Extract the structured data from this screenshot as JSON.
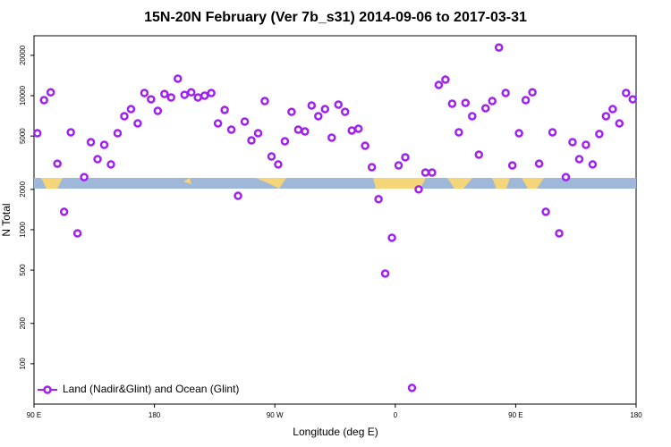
{
  "chart_data": {
    "type": "scatter",
    "title": "15N-20N February (Ver 7b_s31)   2014-09-06 to 2017-03-31",
    "x_label": "Longitude (deg E)",
    "y_label": "N Total",
    "log_y": true,
    "legend": "bottom-left",
    "xlim": [
      90,
      540
    ],
    "xticks": [
      {
        "value": 90,
        "label": "90 E"
      },
      180,
      {
        "value": 270,
        "label": "90 W"
      },
      {
        "value": 360,
        "label": "0"
      },
      {
        "value": 450,
        "label": "90 E"
      },
      {
        "value": 540,
        "label": "180"
      }
    ],
    "ylim": [
      50,
      28000
    ],
    "yticks": [
      100,
      200,
      500,
      1000,
      2000,
      5000,
      10000,
      20000
    ],
    "x": [
      92.5,
      97.5,
      102.5,
      107.5,
      112.5,
      117.5,
      122.5,
      127.5,
      132.5,
      137.5,
      142.5,
      147.5,
      152.5,
      157.5,
      162.5,
      167.5,
      172.5,
      177.5,
      182.5,
      187.5,
      192.5,
      197.5,
      202.5,
      207.5,
      212.5,
      217.5,
      222.5,
      227.5,
      232.5,
      237.5,
      242.5,
      247.5,
      252.5,
      257.5,
      262.5,
      267.5,
      272.5,
      277.5,
      282.5,
      287.5,
      292.5,
      297.5,
      302.5,
      307.5,
      312.5,
      317.5,
      322.5,
      327.5,
      332.5,
      337.5,
      342.5,
      347.5,
      352.5,
      357.5,
      362.5,
      367.5,
      372.5,
      377.5,
      382.5,
      387.5,
      392.5,
      397.5,
      402.5,
      407.5,
      412.5,
      417.5,
      422.5,
      427.5,
      432.5,
      437.5,
      442.5,
      447.5,
      452.5,
      457.5,
      462.5,
      467.5,
      472.5,
      477.5,
      482.5,
      487.5,
      492.5,
      497.5,
      502.5,
      507.5,
      512.5,
      517.5,
      522.5,
      527.5,
      532.5,
      537.5
    ],
    "series": [
      {
        "name": "Land (Nadir&Glint) and Ocean (Glint)",
        "color": "#a020f0",
        "values": [
          5250,
          9260,
          10600,
          3110,
          1360,
          5330,
          940,
          2470,
          4500,
          3360,
          4300,
          3070,
          5250,
          7030,
          7940,
          6210,
          10470,
          9400,
          7700,
          10300,
          9700,
          13400,
          10150,
          10600,
          9700,
          10000,
          10470,
          6210,
          7830,
          5580,
          1790,
          6410,
          4640,
          5250,
          9120,
          3520,
          3070,
          4570,
          7580,
          5580,
          5410,
          8450,
          7030,
          7940,
          4860,
          8580,
          7580,
          5500,
          5670,
          4230,
          2930,
          1690,
          471,
          871,
          3020,
          3470,
          66,
          2000,
          2670,
          2670,
          12020,
          13180,
          8710,
          5330,
          8830,
          7030,
          3630,
          8060,
          9120,
          22900,
          10470,
          3020,
          5250,
          9260,
          10600,
          3110,
          1360,
          5330,
          940,
          2470,
          4500,
          3360,
          4300,
          3070,
          5180,
          7030,
          7940,
          6210,
          10470,
          9400
        ]
      }
    ]
  }
}
